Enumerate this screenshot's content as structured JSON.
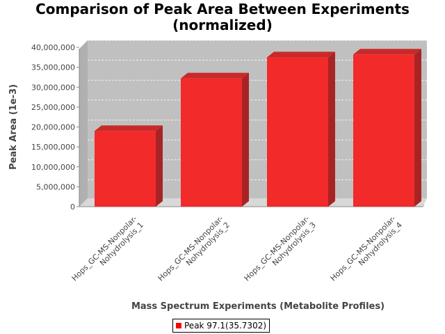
{
  "chart_data": {
    "type": "bar",
    "title_line1": "Comparison of Peak Area Between Experiments",
    "title_line2": "(normalized)",
    "xlabel": "Mass Spectrum Experiments (Metabolite Profiles)",
    "ylabel": "Peak Area (1e-3)",
    "categories": [
      [
        "Hops_GC-MS-Nonpolar-",
        "Nohydrolysis_1"
      ],
      [
        "Hops_GC-MS-Nonpolar-",
        "Nohydrolysis_2"
      ],
      [
        "Hops_GC-MS-Nonpolar-",
        "Nohydrolysis_3"
      ],
      [
        "Hops_GC-MS-Nonpolar-",
        "Nohydrolysis_4"
      ]
    ],
    "series": [
      {
        "name": "Peak 97.1(35.7302)",
        "values": [
          19000000,
          32200000,
          37500000,
          38200000
        ],
        "color": "#ff0000"
      }
    ],
    "yticks": [
      "0",
      "5,000,000",
      "10,000,000",
      "15,000,000",
      "20,000,000",
      "25,000,000",
      "30,000,000",
      "35,000,000",
      "40,000,000"
    ],
    "ytick_values": [
      0,
      5000000,
      10000000,
      15000000,
      20000000,
      25000000,
      30000000,
      35000000,
      40000000
    ],
    "ylim": [
      0,
      40000000
    ],
    "grid": true,
    "legend_position": "bottom",
    "plot_background": "#c0c0c0"
  }
}
